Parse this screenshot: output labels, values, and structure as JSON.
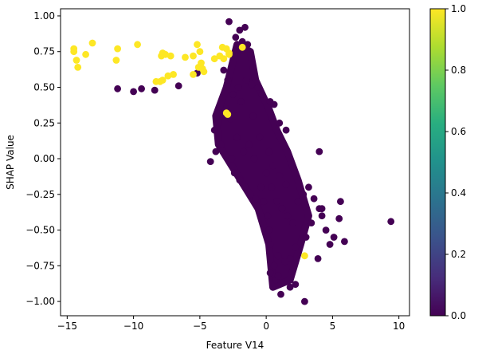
{
  "chart_data": {
    "type": "scatter",
    "title": "",
    "xlabel": "Feature V14",
    "ylabel": "SHAP Value",
    "xlim": [
      -15.5,
      10.8
    ],
    "ylim": [
      -1.1,
      1.05
    ],
    "xticks": [
      -15,
      -10,
      -5,
      0,
      5,
      10
    ],
    "yticks": [
      -1.0,
      -0.75,
      -0.5,
      -0.25,
      0.0,
      0.25,
      0.5,
      0.75,
      1.0
    ],
    "grid": false,
    "colorbar": {
      "colormap": "viridis",
      "range": [
        0,
        1
      ],
      "ticks": [
        0.0,
        0.2,
        0.4,
        0.6,
        0.8,
        1.0
      ]
    },
    "colors": {
      "class_0": "#440154",
      "class_1": "#fde725"
    },
    "series": [
      {
        "class": 0,
        "points": [
          [
            -2.8,
            0.96
          ],
          [
            -2.0,
            0.9
          ],
          [
            -1.6,
            0.92
          ],
          [
            -2.3,
            0.85
          ],
          [
            -1.8,
            0.82
          ],
          [
            -1.4,
            0.8
          ],
          [
            -11.2,
            0.49
          ],
          [
            -10.0,
            0.47
          ],
          [
            -9.4,
            0.49
          ],
          [
            -8.4,
            0.48
          ],
          [
            -6.6,
            0.51
          ],
          [
            -5.2,
            0.6
          ],
          [
            -3.2,
            0.62
          ],
          [
            -2.9,
            0.55
          ],
          [
            -2.5,
            0.45
          ],
          [
            -2.1,
            0.5
          ],
          [
            -1.5,
            0.55
          ],
          [
            -1.1,
            0.52
          ],
          [
            -0.6,
            0.5
          ],
          [
            -0.3,
            0.45
          ],
          [
            0.3,
            0.4
          ],
          [
            0.6,
            0.38
          ],
          [
            1.0,
            0.25
          ],
          [
            1.5,
            0.2
          ],
          [
            -3.6,
            0.25
          ],
          [
            -3.9,
            0.2
          ],
          [
            -3.4,
            0.1
          ],
          [
            -3.8,
            0.05
          ],
          [
            -2.6,
            0.0
          ],
          [
            -4.2,
            -0.02
          ],
          [
            -2.4,
            -0.1
          ],
          [
            -2.0,
            -0.15
          ],
          [
            -1.6,
            -0.2
          ],
          [
            -1.2,
            -0.25
          ],
          [
            -0.8,
            -0.28
          ],
          [
            -0.4,
            -0.2
          ],
          [
            0.0,
            -0.1
          ],
          [
            0.4,
            -0.2
          ],
          [
            0.8,
            -0.3
          ],
          [
            1.2,
            -0.35
          ],
          [
            1.6,
            -0.4
          ],
          [
            2.0,
            -0.45
          ],
          [
            2.4,
            -0.3
          ],
          [
            2.8,
            -0.25
          ],
          [
            3.2,
            -0.2
          ],
          [
            3.6,
            -0.28
          ],
          [
            4.0,
            0.05
          ],
          [
            4.2,
            -0.35
          ],
          [
            4.5,
            -0.5
          ],
          [
            4.8,
            -0.6
          ],
          [
            5.1,
            -0.55
          ],
          [
            5.6,
            -0.3
          ],
          [
            5.5,
            -0.42
          ],
          [
            5.9,
            -0.58
          ],
          [
            3.4,
            -0.45
          ],
          [
            3.0,
            -0.55
          ],
          [
            2.2,
            -0.62
          ],
          [
            1.8,
            -0.7
          ],
          [
            1.4,
            -0.72
          ],
          [
            0.9,
            -0.68
          ],
          [
            0.6,
            -0.75
          ],
          [
            0.3,
            -0.8
          ],
          [
            0.7,
            -0.85
          ],
          [
            0.9,
            -0.82
          ],
          [
            1.1,
            -0.95
          ],
          [
            1.8,
            -0.9
          ],
          [
            2.2,
            -0.88
          ],
          [
            2.9,
            -1.0
          ],
          [
            3.9,
            -0.7
          ],
          [
            4.0,
            -0.35
          ],
          [
            4.2,
            -0.4
          ],
          [
            9.4,
            -0.44
          ],
          [
            -1.0,
            0.3
          ],
          [
            -0.5,
            0.15
          ],
          [
            0.2,
            0.05
          ],
          [
            0.5,
            -0.05
          ],
          [
            1.0,
            -0.12
          ],
          [
            1.5,
            -0.18
          ],
          [
            -1.3,
            0.1
          ],
          [
            -0.9,
            0.0
          ],
          [
            -0.2,
            -0.3
          ],
          [
            0.1,
            -0.4
          ],
          [
            0.2,
            -0.5
          ],
          [
            0.3,
            -0.6
          ],
          [
            -3.0,
            0.35
          ],
          [
            -2.7,
            0.28
          ],
          [
            -2.2,
            0.15
          ],
          [
            -1.7,
            0.05
          ],
          [
            -1.9,
            0.4
          ],
          [
            -2.4,
            0.3
          ]
        ]
      },
      {
        "class": 1,
        "points": [
          [
            -14.5,
            0.77
          ],
          [
            -14.5,
            0.75
          ],
          [
            -14.3,
            0.69
          ],
          [
            -14.2,
            0.64
          ],
          [
            -13.6,
            0.73
          ],
          [
            -13.1,
            0.81
          ],
          [
            -11.2,
            0.77
          ],
          [
            -11.3,
            0.69
          ],
          [
            -9.7,
            0.8
          ],
          [
            -7.8,
            0.74
          ],
          [
            -7.9,
            0.72
          ],
          [
            -7.6,
            0.73
          ],
          [
            -7.2,
            0.72
          ],
          [
            -7.0,
            0.59
          ],
          [
            -7.4,
            0.58
          ],
          [
            -8.0,
            0.54
          ],
          [
            -8.3,
            0.54
          ],
          [
            -7.8,
            0.55
          ],
          [
            -6.1,
            0.71
          ],
          [
            -5.5,
            0.72
          ],
          [
            -5.2,
            0.8
          ],
          [
            -5.0,
            0.75
          ],
          [
            -4.9,
            0.67
          ],
          [
            -4.7,
            0.61
          ],
          [
            -5.1,
            0.64
          ],
          [
            -5.5,
            0.59
          ],
          [
            -4.8,
            0.63
          ],
          [
            -3.9,
            0.7
          ],
          [
            -3.5,
            0.72
          ],
          [
            -3.3,
            0.78
          ],
          [
            -3.0,
            0.77
          ],
          [
            -2.8,
            0.74
          ],
          [
            -2.8,
            0.73
          ],
          [
            -3.2,
            0.7
          ],
          [
            -1.8,
            0.78
          ],
          [
            -3.0,
            0.32
          ],
          [
            -2.9,
            0.31
          ],
          [
            2.9,
            -0.68
          ]
        ]
      }
    ]
  }
}
